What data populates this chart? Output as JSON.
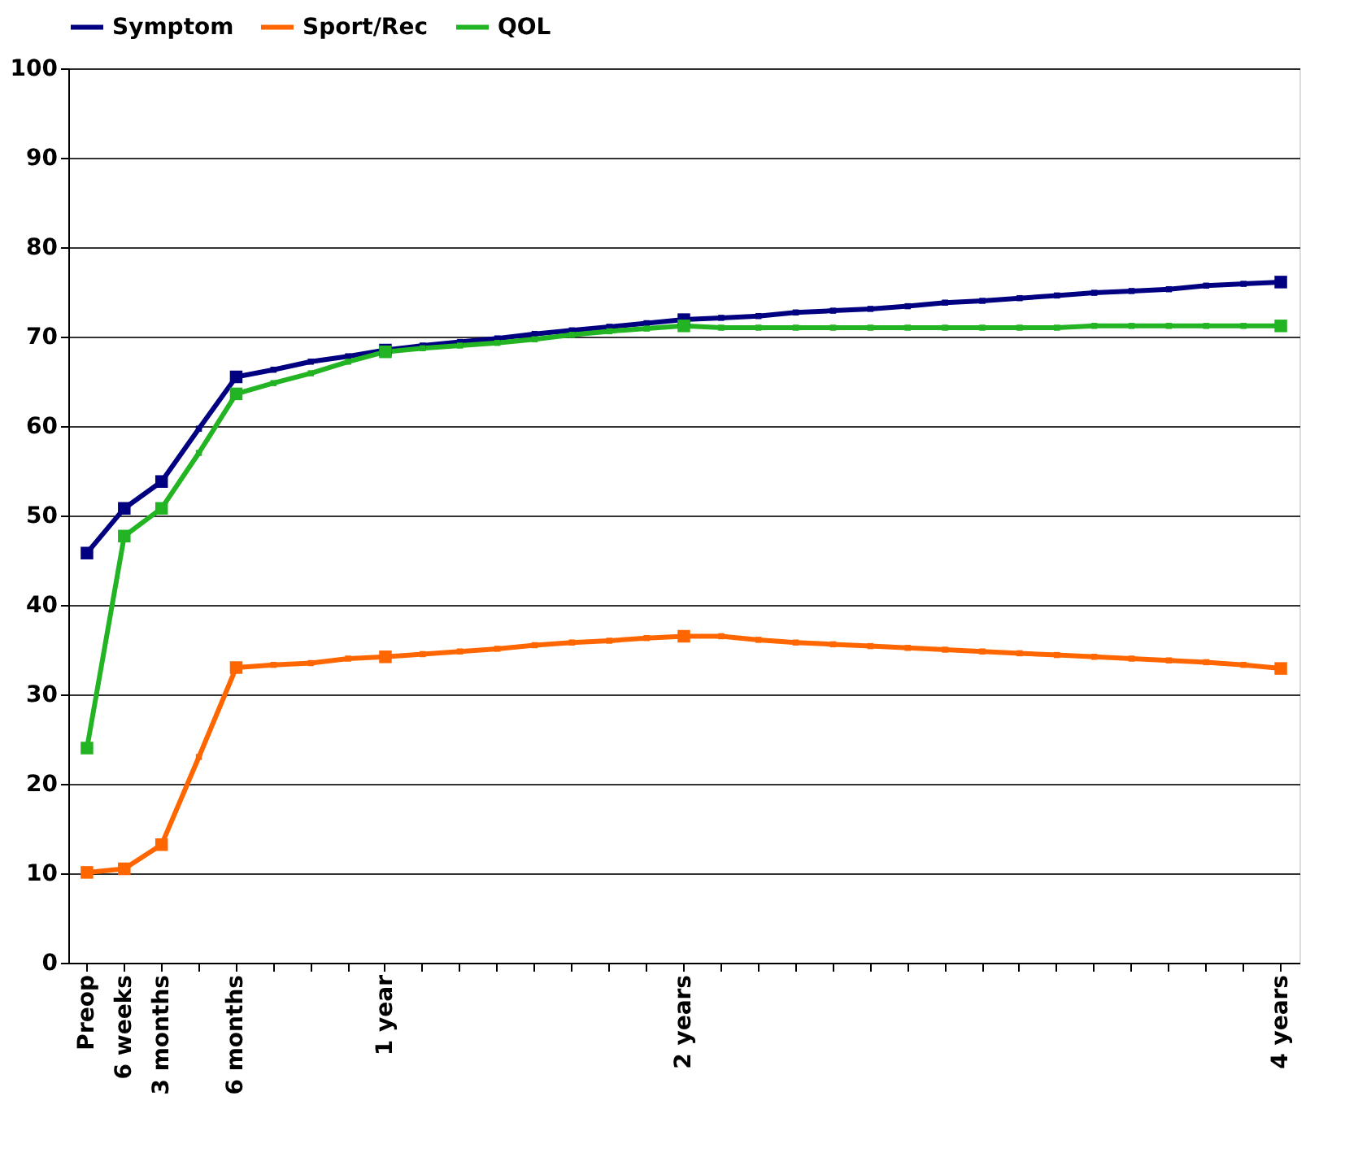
{
  "chart_data": {
    "type": "line",
    "categories": [
      "Preop",
      "6 weeks",
      "3 months",
      null,
      "6 months",
      null,
      null,
      null,
      "1 year",
      null,
      null,
      null,
      null,
      null,
      null,
      null,
      "2 years",
      null,
      null,
      null,
      null,
      null,
      null,
      null,
      null,
      null,
      null,
      null,
      null,
      null,
      null,
      null,
      "4 years"
    ],
    "series": [
      {
        "name": "Symptom",
        "color": "#000080",
        "values": [
          45.8,
          50.8,
          53.8,
          59.7,
          65.5,
          66.3,
          67.2,
          67.8,
          68.5,
          69.0,
          69.4,
          69.8,
          70.3,
          70.7,
          71.1,
          71.5,
          71.9,
          72.1,
          72.3,
          72.7,
          72.9,
          73.1,
          73.4,
          73.8,
          74.0,
          74.3,
          74.6,
          74.9,
          75.1,
          75.3,
          75.7,
          75.9,
          76.1
        ]
      },
      {
        "name": "Sport/Rec",
        "color": "#ff6600",
        "values": [
          10.1,
          10.5,
          13.2,
          23.0,
          33.0,
          33.3,
          33.5,
          34.0,
          34.2,
          34.5,
          34.8,
          35.1,
          35.5,
          35.8,
          36.0,
          36.3,
          36.5,
          36.5,
          36.1,
          35.8,
          35.6,
          35.4,
          35.2,
          35.0,
          34.8,
          34.6,
          34.4,
          34.2,
          34.0,
          33.8,
          33.6,
          33.3,
          32.9
        ]
      },
      {
        "name": "QOL",
        "color": "#22b422",
        "values": [
          24.0,
          47.7,
          50.8,
          57.0,
          63.6,
          64.8,
          65.9,
          67.2,
          68.3,
          68.7,
          69.0,
          69.3,
          69.7,
          70.2,
          70.6,
          70.9,
          71.2,
          71.0,
          71.0,
          71.0,
          71.0,
          71.0,
          71.0,
          71.0,
          71.0,
          71.0,
          71.0,
          71.2,
          71.2,
          71.2,
          71.2,
          71.2,
          71.2
        ]
      }
    ],
    "ylim": [
      0,
      100
    ],
    "yticks": [
      0,
      10,
      20,
      30,
      40,
      50,
      60,
      70,
      80,
      90,
      100
    ],
    "grid": "y",
    "legend": "top",
    "marker": "square",
    "line_style": "solid"
  }
}
